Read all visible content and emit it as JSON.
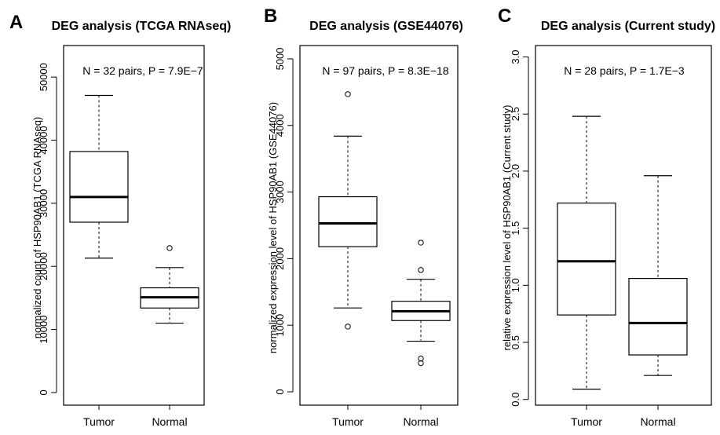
{
  "chart_data": [
    {
      "type": "boxplot",
      "panel_letter": "A",
      "title": "DEG analysis (TCGA RNAseq)",
      "annotation": "N = 32 pairs, P = 7.9E−7",
      "ylabel": "normalized count of HSP90AB1 (TCGA RNAseq)",
      "xlabel": "",
      "ylim": [
        -2000,
        55000
      ],
      "yticks": [
        0,
        10000,
        20000,
        30000,
        40000,
        50000
      ],
      "ytick_labels": [
        "0",
        "10000",
        "20000",
        "30000",
        "40000",
        "50000"
      ],
      "categories": [
        "Tumor",
        "Normal"
      ],
      "boxes": [
        {
          "name": "Tumor",
          "whisker_low": 21300,
          "q1": 27000,
          "median": 31000,
          "q3": 38200,
          "whisker_high": 47100,
          "outliers": []
        },
        {
          "name": "Normal",
          "whisker_low": 11000,
          "q1": 13400,
          "median": 15100,
          "q3": 16600,
          "whisker_high": 19800,
          "outliers": [
            22900
          ]
        }
      ]
    },
    {
      "type": "boxplot",
      "panel_letter": "B",
      "title": "DEG analysis (GSE44076)",
      "annotation": "N = 97 pairs, P = 8.3E−18",
      "ylabel": "normalized expression level of HSP90AB1 (GSE44076)",
      "xlabel": "",
      "ylim": [
        -200,
        5200
      ],
      "yticks": [
        0,
        1000,
        2000,
        3000,
        4000,
        5000
      ],
      "ytick_labels": [
        "0",
        "1000",
        "2000",
        "3000",
        "4000",
        "5000"
      ],
      "categories": [
        "Tumor",
        "Normal"
      ],
      "boxes": [
        {
          "name": "Tumor",
          "whisker_low": 1260,
          "q1": 2180,
          "median": 2530,
          "q3": 2930,
          "whisker_high": 3840,
          "outliers": [
            980,
            4470
          ]
        },
        {
          "name": "Normal",
          "whisker_low": 760,
          "q1": 1070,
          "median": 1210,
          "q3": 1360,
          "whisker_high": 1690,
          "outliers": [
            430,
            500,
            1830,
            2240
          ]
        }
      ]
    },
    {
      "type": "boxplot",
      "panel_letter": "C",
      "title": "DEG analysis (Current study)",
      "annotation": "N = 28 pairs, P = 1.7E−3",
      "ylabel": "relative expression level of HSP90AB1 (Current study)",
      "xlabel": "",
      "ylim": [
        -0.05,
        3.1
      ],
      "yticks": [
        0.0,
        0.5,
        1.0,
        1.5,
        2.0,
        2.5,
        3.0
      ],
      "ytick_labels": [
        "0.0",
        "0.5",
        "1.0",
        "1.5",
        "2.0",
        "2.5",
        "3.0"
      ],
      "categories": [
        "Tumor",
        "Normal"
      ],
      "boxes": [
        {
          "name": "Tumor",
          "whisker_low": 0.09,
          "q1": 0.74,
          "median": 1.21,
          "q3": 1.72,
          "whisker_high": 2.48,
          "outliers": []
        },
        {
          "name": "Normal",
          "whisker_low": 0.21,
          "q1": 0.39,
          "median": 0.67,
          "q3": 1.06,
          "whisker_high": 1.96,
          "outliers": []
        }
      ]
    }
  ]
}
